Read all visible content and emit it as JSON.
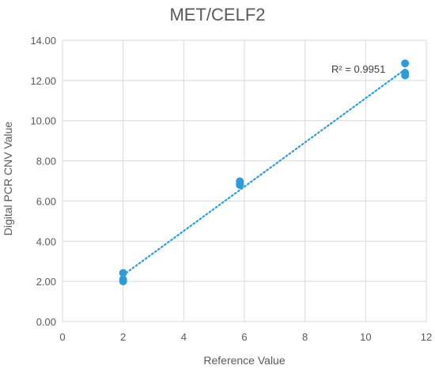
{
  "chart_data": {
    "type": "scatter",
    "title": "MET/CELF2",
    "xlabel": "Reference Value",
    "ylabel": "Digital PCR CNV Value",
    "xlim": [
      0,
      12
    ],
    "ylim": [
      0,
      14
    ],
    "x_ticks": [
      "0",
      "2",
      "4",
      "6",
      "8",
      "10",
      "12"
    ],
    "y_ticks": [
      "0.00",
      "2.00",
      "4.00",
      "6.00",
      "8.00",
      "10.00",
      "12.00",
      "14.00"
    ],
    "grid": true,
    "points": [
      {
        "x": 2,
        "y": 2.42
      },
      {
        "x": 2,
        "y": 2.1
      },
      {
        "x": 2,
        "y": 2.0
      },
      {
        "x": 5.85,
        "y": 6.98
      },
      {
        "x": 5.85,
        "y": 6.88
      },
      {
        "x": 5.85,
        "y": 6.8
      },
      {
        "x": 11.3,
        "y": 12.85
      },
      {
        "x": 11.3,
        "y": 12.38
      },
      {
        "x": 11.3,
        "y": 12.25
      }
    ],
    "trendline": {
      "style": "dotted",
      "start": {
        "x": 2,
        "y": 2.31
      },
      "end": {
        "x": 11.3,
        "y": 12.55
      }
    },
    "annotation": "R² = 0.9951",
    "marker_color": "#2E9BDA",
    "trendline_color": "#2E9BDA",
    "grid_color": "#D9D9D9",
    "text_color": "#595959"
  }
}
